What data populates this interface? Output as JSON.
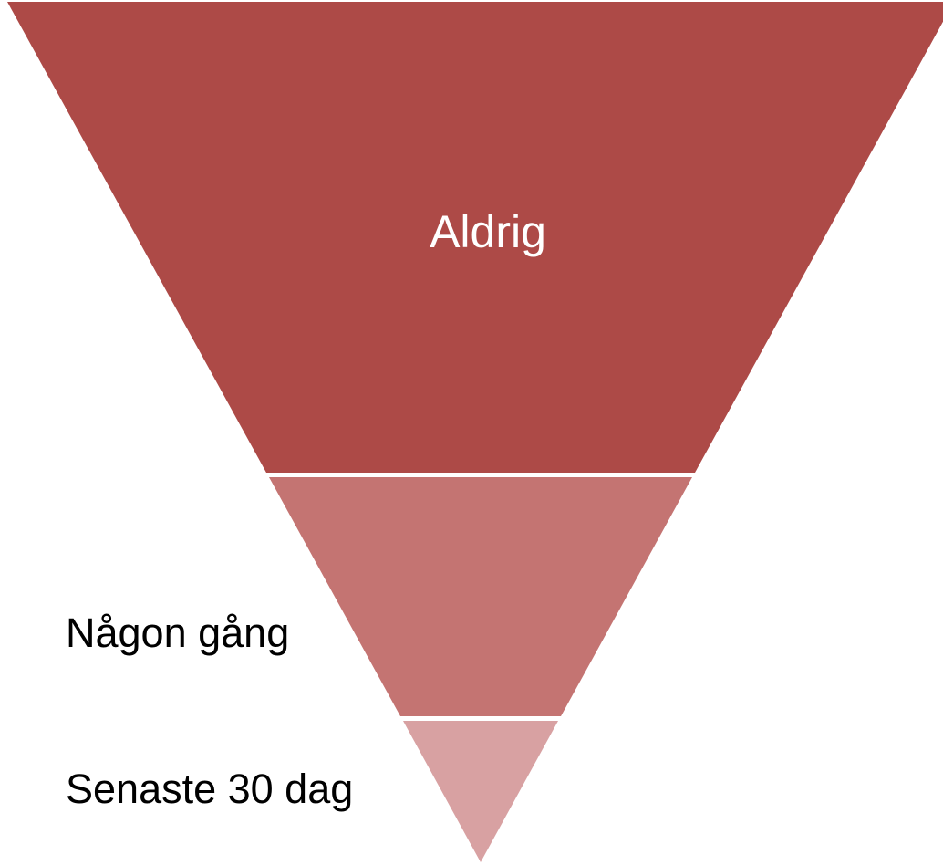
{
  "levels": [
    {
      "label": "Aldrig"
    },
    {
      "label": "Någon gång"
    },
    {
      "label": "Senaste 30 dag"
    }
  ]
}
